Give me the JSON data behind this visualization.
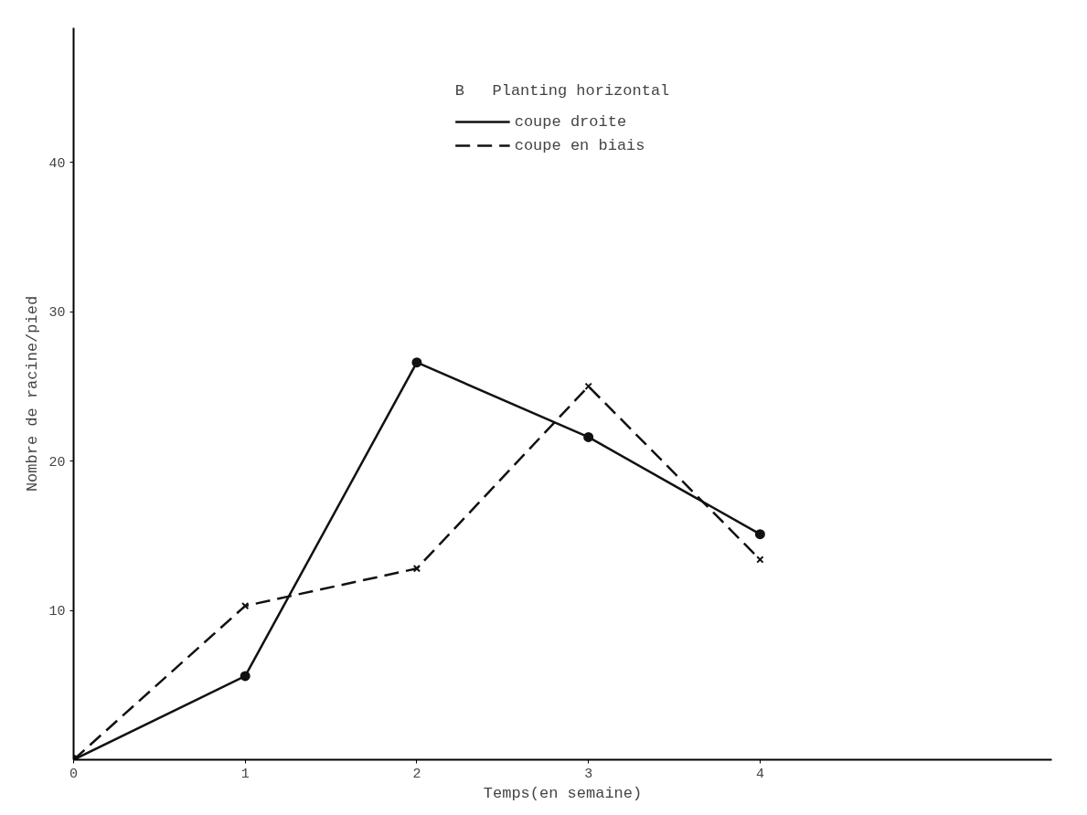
{
  "chart_data": {
    "type": "line",
    "xlabel": "Temps(en semaine)",
    "ylabel": "Nombre de racine/pied",
    "legend_title": "B   Planting horizontal",
    "x": [
      0,
      1,
      2,
      3,
      4
    ],
    "series": [
      {
        "name": "coupe droite",
        "color": "#111111",
        "values": [
          0,
          5.6,
          26.6,
          21.6,
          15.1
        ],
        "line_style": "solid",
        "marker": "circle"
      },
      {
        "name": "coupe en biais",
        "color": "#111111",
        "values": [
          0,
          10.3,
          12.8,
          25.0,
          13.4
        ],
        "line_style": "dashed",
        "marker": "cross"
      }
    ],
    "xlim": [
      0,
      5.7
    ],
    "ylim": [
      0,
      49
    ],
    "xticks": [
      0,
      1,
      2,
      3,
      4
    ],
    "yticks": [
      10,
      20,
      30,
      40
    ],
    "grid": false,
    "legend": "top"
  }
}
